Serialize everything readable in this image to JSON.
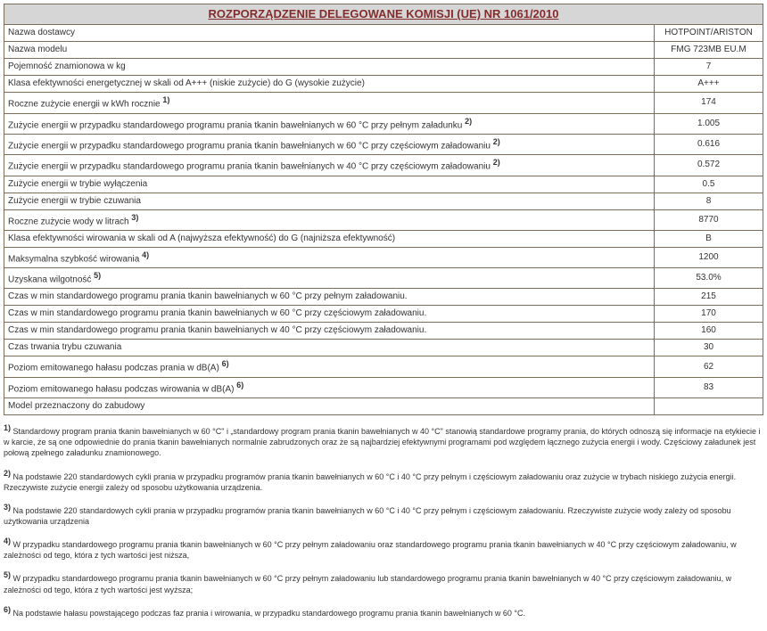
{
  "title": "ROZPORZĄDZENIE DELEGOWANE KOMISJI (UE) NR 1061/2010",
  "value_header": "HOTPOINT/ARISTON",
  "rows": [
    {
      "label": "Nazwa dostawcy",
      "value": "HOTPOINT/ARISTON",
      "is_header": true
    },
    {
      "label": "Nazwa modelu",
      "value": "FMG 723MB EU.M"
    },
    {
      "label": "Pojemność znamionowa w kg",
      "value": "7"
    },
    {
      "label": "Klasa efektywności energetycznej w skali od A+++ (niskie zużycie) do G (wysokie zużycie)",
      "value": "A+++"
    },
    {
      "label": "Roczne zużycie energii w kWh rocznie ",
      "sup": "1)",
      "value": "174"
    },
    {
      "label": "Zużycie energii w przypadku standardowego programu prania tkanin bawełnianych w 60 °C przy pełnym załadunku ",
      "sup": "2)",
      "value": "1.005"
    },
    {
      "label": "Zużycie energii w przypadku standardowego programu prania tkanin bawełnianych w 60 °C przy częściowym załadowaniu ",
      "sup": "2)",
      "value": "0.616"
    },
    {
      "label": "Zużycie energii w przypadku standardowego programu prania tkanin bawełnianych w 40 °C przy częściowym załadowaniu ",
      "sup": "2)",
      "value": "0.572"
    },
    {
      "label": "Zużycie energii w trybie wyłączenia",
      "value": "0.5"
    },
    {
      "label": "Zużycie energii w trybie czuwania",
      "value": "8"
    },
    {
      "label": "Roczne zużycie wody w litrach ",
      "sup": "3)",
      "value": "8770"
    },
    {
      "label": "Klasa efektywności wirowania w skali od A (najwyższa efektywność) do G (najniższa efektywność)",
      "value": "B"
    },
    {
      "label": "Maksymalna szybkość wirowania ",
      "sup": "4)",
      "value": "1200"
    },
    {
      "label": "Uzyskana wilgotność ",
      "sup": "5)",
      "value": "53.0%"
    },
    {
      "label": "Czas w min standardowego programu prania tkanin bawełnianych w 60 °C przy pełnym załadowaniu.",
      "value": "215"
    },
    {
      "label": "Czas w min standardowego programu prania tkanin bawełnianych w 60 °C przy częściowym załadowaniu.",
      "value": "170"
    },
    {
      "label": "Czas w min standardowego programu prania tkanin bawełnianych w 40 °C przy częściowym załadowaniu.",
      "value": "160"
    },
    {
      "label": "Czas trwania trybu czuwania",
      "value": "30"
    },
    {
      "label": "Poziom emitowanego hałasu podczas prania w dB(A) ",
      "sup": "6)",
      "value": "62"
    },
    {
      "label": "Poziom emitowanego hałasu podczas wirowania w dB(A) ",
      "sup": "6)",
      "value": "83"
    },
    {
      "label": "Model przeznaczony do zabudowy",
      "value": ""
    }
  ],
  "footnotes": [
    {
      "num": "1)",
      "text": " Standardowy program prania tkanin bawełnianych w 60 °C\" i „standardowy program prania tkanin bawełnianych w 40 °C\" stanowią standardowe programy prania, do których odnoszą się informacje na etykiecie i w karcie, że są one odpowiednie do prania tkanin bawełnianych normalnie zabrudzonych oraz że są najbardziej efektywnymi programami pod względem łącznego zużycia energii i wody. Częściowy załadunek jest połową zpełnego załadunku znamionowego."
    },
    {
      "num": "2)",
      "text": " Na podstawie 220 standardowych cykli prania w przypadku programów prania tkanin bawełnianych w 60 °C i 40 °C przy pełnym i częściowym załadowaniu oraz zużycie w trybach niskiego zużycia energii. Rzeczywiste zużycie energii zależy od sposobu użytkowania urządzenia."
    },
    {
      "num": "3)",
      "text": " Na podstawie 220 standardowych cykli prania w przypadku programów prania tkanin bawełnianych w 60 °C i 40 °C przy pełnym i częściowym załadowaniu. Rzeczywiste zużycie wody zależy od sposobu użytkowania urządzenia"
    },
    {
      "num": "4)",
      "text": " W przypadku standardowego programu prania tkanin bawełnianych w 60 °C przy pełnym załadowaniu oraz standardowego programu prania tkanin bawełnianych w 40 °C przy częściowym załadowaniu, w zależności od tego, która z tych wartości jest niższa,"
    },
    {
      "num": "5)",
      "text": " W przypadku standardowego programu prania tkanin bawełnianych w 60 °C przy pełnym załadowaniu lub standardowego programu prania tkanin bawełnianych w 40 °C przy częściowym załadowaniu, w zależności od tego, która z tych wartości jest wyższa;"
    },
    {
      "num": "6)",
      "text": " Na podstawie hałasu powstającego podczas faz prania i wirowania, w przypadku standardowego programu prania tkanin bawełnianych w 60 °C."
    }
  ],
  "colors": {
    "title_bg": "#d6d6d6",
    "title_text": "#842c2c",
    "border": "#7b6e5a",
    "body_text": "#333333"
  }
}
